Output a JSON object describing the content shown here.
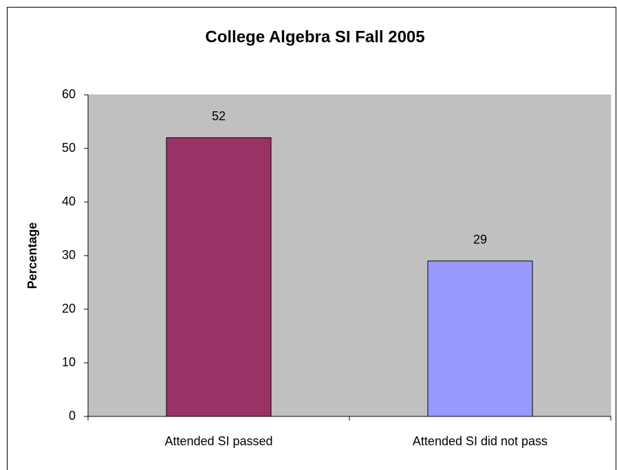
{
  "chart_data": {
    "type": "bar",
    "title": "College Algebra SI Fall 2005",
    "y_label": "Percentage",
    "categories": [
      "Attended SI passed",
      "Attended SI did not pass"
    ],
    "values": [
      52,
      29
    ],
    "colors": [
      "#993366",
      "#9999ff"
    ],
    "ylim": [
      0,
      60
    ],
    "yticks": [
      0,
      10,
      20,
      30,
      40,
      50,
      60
    ],
    "grid": false,
    "plot_background": "#c0c0c0"
  }
}
